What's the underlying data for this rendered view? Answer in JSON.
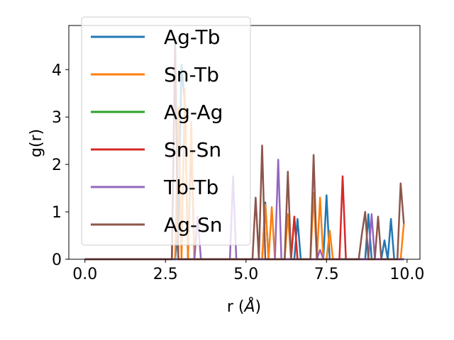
{
  "chart_data": {
    "type": "line",
    "xlabel_main": "r (",
    "xlabel_unit": "Å",
    "xlabel_close": ")",
    "ylabel": "g(r)",
    "xlim": [
      -0.5,
      10.4
    ],
    "ylim": [
      0,
      4.93
    ],
    "x_ticks": [
      0.0,
      2.5,
      5.0,
      7.5,
      10.0
    ],
    "x_tick_labels": [
      "0.0",
      "2.5",
      "5.0",
      "7.5",
      "10.0"
    ],
    "y_ticks": [
      0,
      1,
      2,
      3,
      4
    ],
    "y_tick_labels": [
      "0",
      "1",
      "2",
      "3",
      "4"
    ],
    "legend_position": "upper-left",
    "x": [
      0,
      0.1,
      0.2,
      0.3,
      0.4,
      0.5,
      0.6,
      0.7,
      0.8,
      0.9,
      1.0,
      1.1,
      1.2,
      1.3,
      1.4,
      1.5,
      1.6,
      1.7,
      1.8,
      1.9,
      2.0,
      2.1,
      2.2,
      2.3,
      2.4,
      2.5,
      2.6,
      2.7,
      2.8,
      2.9,
      3.0,
      3.1,
      3.2,
      3.3,
      3.4,
      3.5,
      3.6,
      3.7,
      3.8,
      3.9,
      4.0,
      4.1,
      4.2,
      4.3,
      4.4,
      4.5,
      4.6,
      4.7,
      4.8,
      4.9,
      5.0,
      5.1,
      5.2,
      5.3,
      5.4,
      5.5,
      5.6,
      5.7,
      5.8,
      5.9,
      6.0,
      6.1,
      6.2,
      6.3,
      6.4,
      6.5,
      6.6,
      6.7,
      6.8,
      6.9,
      7.0,
      7.1,
      7.2,
      7.3,
      7.4,
      7.5,
      7.6,
      7.7,
      7.8,
      7.9,
      8.0,
      8.1,
      8.2,
      8.3,
      8.4,
      8.5,
      8.6,
      8.7,
      8.8,
      8.9,
      9.0,
      9.1,
      9.2,
      9.3,
      9.4,
      9.5,
      9.6,
      9.7,
      9.8,
      9.9
    ],
    "series": [
      {
        "name": "Ag-Tb",
        "color": "#1f77b4",
        "values": [
          0,
          0,
          0,
          0,
          0,
          0,
          0,
          0,
          0,
          0,
          0,
          0,
          0,
          0,
          0,
          0,
          0,
          0,
          0,
          0,
          0,
          0,
          0,
          0,
          0,
          0,
          0,
          0,
          0,
          0.6,
          4.1,
          3.3,
          0,
          2.5,
          0,
          0,
          0,
          0,
          0,
          0,
          0,
          0,
          0,
          0,
          0,
          0,
          0,
          0,
          0,
          0,
          0,
          0,
          0,
          0,
          0,
          0,
          1.2,
          0,
          0,
          0,
          0,
          0,
          0,
          0,
          0,
          0,
          0.85,
          0,
          0,
          0,
          0,
          0,
          0,
          0,
          0,
          1.35,
          0,
          0,
          0,
          0,
          0,
          0,
          0,
          0,
          0,
          0,
          0,
          0,
          0.95,
          0,
          0,
          0,
          0,
          0.4,
          0,
          0.85,
          0,
          0,
          0,
          0
        ]
      },
      {
        "name": "Sn-Tb",
        "color": "#ff7f0e",
        "values": [
          0,
          0,
          0,
          0,
          0,
          0,
          0,
          0,
          0,
          0,
          0,
          0,
          0,
          0,
          0,
          0,
          0,
          0,
          0,
          0,
          0,
          0,
          0,
          0,
          0,
          0,
          0,
          0,
          0,
          3.2,
          0,
          3.6,
          0,
          2.9,
          0,
          0,
          0,
          0,
          0,
          0,
          0,
          0,
          0,
          0,
          0,
          0,
          0,
          0,
          0,
          0,
          0,
          0,
          0,
          0,
          0,
          0,
          1.15,
          0,
          1.1,
          0,
          0,
          0,
          0,
          0.95,
          0,
          0.9,
          0,
          0,
          0,
          0,
          0,
          1.4,
          0,
          1.3,
          0,
          0,
          0.6,
          0,
          0,
          0,
          0,
          0,
          0,
          0,
          0,
          0,
          0,
          0,
          0,
          0,
          0,
          0,
          0,
          0,
          0,
          0,
          0,
          0,
          0,
          0.75
        ]
      },
      {
        "name": "Ag-Ag",
        "color": "#2ca02c",
        "values": [
          0,
          0,
          0,
          0,
          0,
          0,
          0,
          0,
          0,
          0,
          0,
          0,
          0,
          0,
          0,
          0,
          0,
          0,
          0,
          0,
          0,
          0,
          0,
          0,
          0,
          0,
          0,
          0,
          0,
          0,
          0,
          0,
          0,
          0,
          0,
          0,
          0,
          0,
          0,
          0,
          0,
          0,
          0,
          0,
          0,
          0,
          0,
          0,
          0,
          0,
          0,
          0,
          0,
          0,
          0,
          0,
          0,
          0,
          0,
          0,
          0,
          0,
          0,
          0,
          0,
          0,
          0,
          0,
          0,
          0,
          0,
          0,
          0,
          0,
          0,
          0,
          0,
          0,
          0,
          0,
          0,
          0,
          0,
          0,
          0,
          0,
          0,
          0,
          0,
          0,
          0,
          0,
          0,
          0,
          0,
          0,
          0,
          0,
          0,
          0
        ]
      },
      {
        "name": "Sn-Sn",
        "color": "#d62728",
        "values": [
          0,
          0,
          0,
          0,
          0,
          0,
          0,
          0,
          0,
          0,
          0,
          0,
          0,
          0,
          0,
          0,
          0,
          0,
          0,
          0,
          0,
          0,
          0,
          0,
          0,
          0,
          0,
          0,
          4.5,
          0,
          0,
          0,
          0,
          0,
          0,
          0,
          0,
          0,
          0,
          0,
          0,
          0,
          0,
          0,
          0,
          0,
          0,
          0,
          0,
          0,
          0,
          0,
          0,
          0,
          0,
          0,
          0,
          0,
          0,
          0,
          0,
          0,
          0,
          0,
          0,
          0.9,
          0,
          0,
          0,
          0,
          0,
          0,
          0,
          0,
          0,
          0,
          0,
          0,
          0,
          0,
          1.75,
          0,
          0,
          0,
          0,
          0,
          0,
          0,
          0,
          0,
          0,
          0,
          0,
          0,
          0,
          0,
          0,
          0,
          0,
          0
        ]
      },
      {
        "name": "Tb-Tb",
        "color": "#9467bd",
        "values": [
          0,
          0,
          0,
          0,
          0,
          0,
          0,
          0,
          0,
          0,
          0,
          0,
          0,
          0,
          0,
          0,
          0,
          0,
          0,
          0,
          0,
          0,
          0,
          0,
          0,
          0,
          0,
          0,
          0,
          0,
          0,
          0,
          0,
          0,
          0,
          0.9,
          0,
          0,
          0,
          0,
          0,
          0,
          0,
          0,
          0,
          0,
          1.75,
          0,
          0,
          0,
          0,
          0,
          0,
          0,
          0,
          0,
          0,
          0,
          0,
          0,
          2.1,
          0,
          0,
          0,
          0,
          0,
          0,
          0,
          0,
          0,
          0,
          0,
          0,
          0.2,
          0,
          0,
          0,
          0,
          0,
          0,
          0,
          0,
          0,
          0,
          0,
          0,
          0,
          0,
          0,
          0.95,
          0,
          0,
          0,
          0,
          0,
          0,
          0,
          0,
          0,
          0
        ]
      },
      {
        "name": "Ag-Sn",
        "color": "#8c564b",
        "values": [
          0,
          0,
          0,
          0,
          0,
          0,
          0,
          0,
          0,
          0,
          0,
          0,
          0,
          0,
          0,
          0,
          0,
          0,
          0,
          0,
          0,
          0,
          0,
          0,
          0,
          0,
          0,
          0,
          4.6,
          0,
          0,
          0,
          0,
          0,
          0,
          0,
          0,
          0,
          0,
          0,
          0,
          0,
          0,
          0,
          0,
          0,
          0,
          0,
          0,
          0,
          0,
          0,
          0,
          1.3,
          0,
          2.4,
          0,
          0,
          0,
          0,
          0,
          0,
          0,
          1.85,
          0,
          0,
          0,
          0,
          0,
          0,
          0,
          2.2,
          0,
          0,
          0,
          0,
          0,
          0,
          0,
          0,
          0,
          0,
          0,
          0,
          0,
          0,
          0.55,
          1.0,
          0,
          0,
          0,
          0.9,
          0,
          0,
          0,
          0,
          0,
          0,
          1.6,
          0.75
        ]
      }
    ]
  }
}
